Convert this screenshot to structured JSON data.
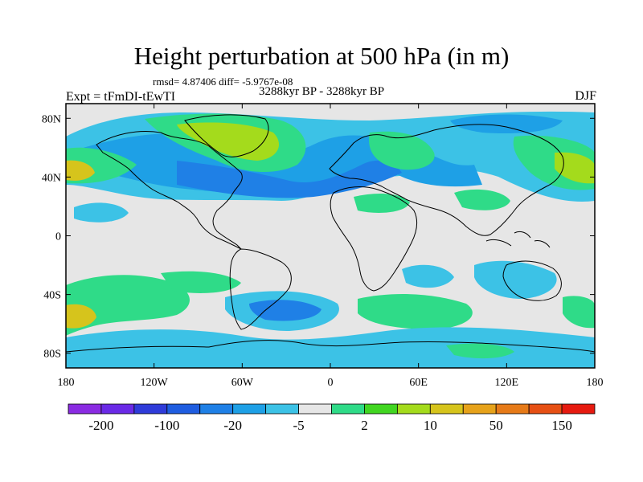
{
  "title": "Height perturbation at 500 hPa (in m)",
  "stats": "rmsd= 4.87406 diff= -5.9767e-08",
  "period": "3288kyr BP - 3288kyr BP",
  "experiment": "Expt = tFmDI-tEwTI",
  "season": "DJF",
  "map": {
    "variable": "Height perturbation",
    "level_hPa": 500,
    "units": "m",
    "lon_range": [
      -180,
      180
    ],
    "lat_range": [
      -90,
      90
    ],
    "lat_ticks": [
      "80N",
      "40N",
      "0",
      "40S",
      "80S"
    ],
    "lon_ticks": [
      "180",
      "120W",
      "60W",
      "0",
      "60E",
      "120E",
      "180"
    ]
  },
  "colorbar": {
    "colors": [
      "#8a2be2",
      "#6a2ae6",
      "#2f3bd9",
      "#1f5de0",
      "#1f80e6",
      "#1ea0e6",
      "#3cc2e6",
      "#e6e6e6",
      "#2fdb88",
      "#41d621",
      "#a4db1c",
      "#d6c41c",
      "#e6a21a",
      "#e67a18",
      "#e65014",
      "#e61a10"
    ],
    "labels": [
      "-200",
      "-100",
      "-20",
      "-5",
      "2",
      "10",
      "50",
      "150"
    ]
  }
}
